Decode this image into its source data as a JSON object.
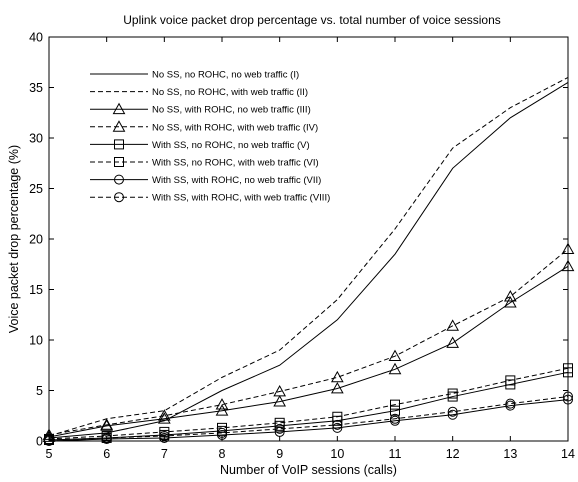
{
  "chart_data": {
    "type": "line",
    "title": "Uplink voice packet drop percentage vs. total number of voice sessions",
    "xlabel": "Number of VoIP sessions (calls)",
    "ylabel": "Voice packet drop percentage (%)",
    "xlim": [
      5,
      14
    ],
    "ylim": [
      0,
      40
    ],
    "xticks": [
      5,
      6,
      7,
      8,
      9,
      10,
      11,
      12,
      13,
      14
    ],
    "yticks": [
      0,
      5,
      10,
      15,
      20,
      25,
      30,
      35,
      40
    ],
    "grid": false,
    "legend_position": "top-left",
    "x": [
      5,
      6,
      7,
      8,
      9,
      10,
      11,
      12,
      13,
      14
    ],
    "series": [
      {
        "name": "No SS, no ROHC, no web traffic (I)",
        "line": "solid",
        "marker": "none",
        "values": [
          0.3,
          0.8,
          2.0,
          5.0,
          7.5,
          12.0,
          18.5,
          27.0,
          32.0,
          35.5
        ]
      },
      {
        "name": "No SS, no ROHC, with web traffic (II)",
        "line": "dashed",
        "marker": "none",
        "values": [
          0.5,
          2.2,
          3.0,
          6.3,
          9.0,
          14.0,
          21.0,
          29.0,
          33.0,
          36.0
        ]
      },
      {
        "name": "No SS, with ROHC, no web traffic (III)",
        "line": "solid",
        "marker": "triangle",
        "values": [
          0.4,
          1.5,
          2.2,
          3.0,
          3.9,
          5.2,
          7.1,
          9.7,
          13.7,
          17.3
        ]
      },
      {
        "name": "No SS, with ROHC, with web traffic (IV)",
        "line": "dashed",
        "marker": "triangle",
        "values": [
          0.6,
          1.6,
          2.5,
          3.6,
          4.9,
          6.3,
          8.4,
          11.4,
          14.3,
          19.0
        ]
      },
      {
        "name": "With SS, no ROHC, no web traffic (V)",
        "line": "solid",
        "marker": "square",
        "values": [
          0.1,
          0.3,
          0.6,
          1.0,
          1.5,
          2.0,
          3.0,
          4.4,
          5.6,
          6.8
        ]
      },
      {
        "name": "With SS, no ROHC, with web traffic (VI)",
        "line": "dashed",
        "marker": "square",
        "values": [
          0.2,
          0.5,
          0.9,
          1.3,
          1.8,
          2.4,
          3.6,
          4.7,
          6.0,
          7.2
        ]
      },
      {
        "name": "With SS, with ROHC, no web traffic (VII)",
        "line": "solid",
        "marker": "circle",
        "values": [
          0.0,
          0.2,
          0.3,
          0.6,
          0.9,
          1.3,
          2.0,
          2.6,
          3.5,
          4.1
        ]
      },
      {
        "name": "With SS, with ROHC, with web traffic (VIII)",
        "line": "dashed",
        "marker": "circle",
        "values": [
          0.1,
          0.3,
          0.5,
          0.8,
          1.2,
          1.6,
          2.2,
          2.9,
          3.7,
          4.4
        ]
      }
    ]
  }
}
